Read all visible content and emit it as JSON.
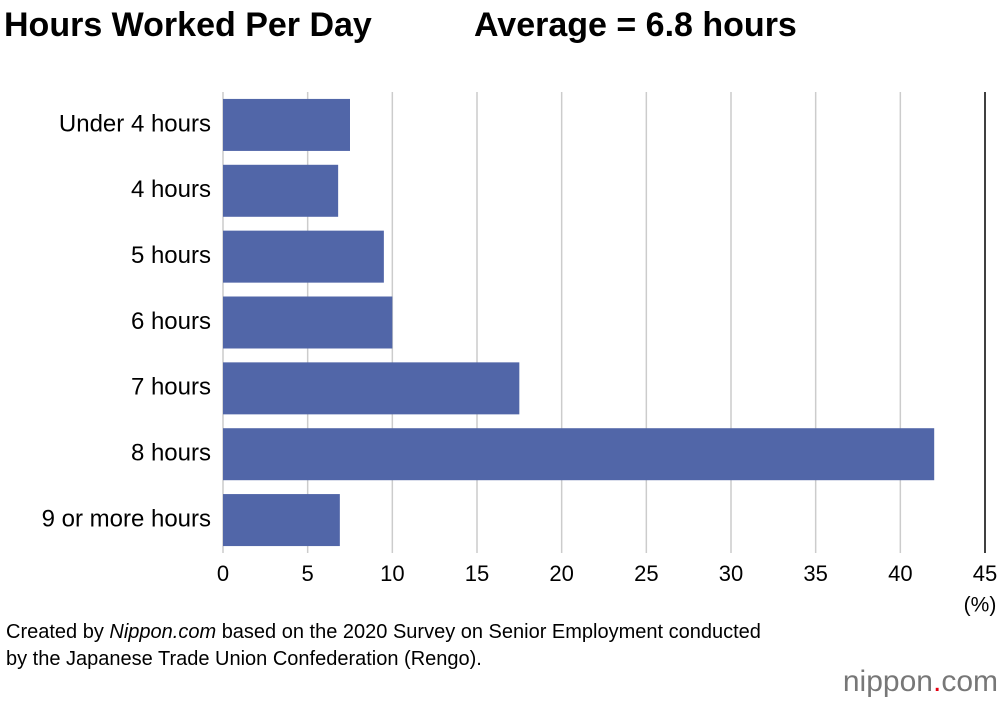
{
  "chart_data": {
    "type": "bar",
    "orientation": "horizontal",
    "title": "Hours Worked Per Day",
    "subtitle": "Average = 6.8 hours",
    "categories": [
      "Under 4 hours",
      "4 hours",
      "5 hours",
      "6 hours",
      "7 hours",
      "8 hours",
      "9 or more hours"
    ],
    "values": [
      7.5,
      6.8,
      9.5,
      10,
      17.5,
      42,
      6.9
    ],
    "color": "#5166a8",
    "xlim": [
      0,
      45
    ],
    "xticks": [
      0,
      5,
      10,
      15,
      20,
      25,
      30,
      35,
      40,
      45
    ],
    "x_unit": "(%)",
    "grid": true
  },
  "source": [
    "Created by",
    "Nippon.com",
    "based on the 2020 Survey on Senior Employment conducted by the Japanese Trade Union Confederation (Rengo)."
  ],
  "logo": [
    "nippon",
    ".",
    "com"
  ]
}
